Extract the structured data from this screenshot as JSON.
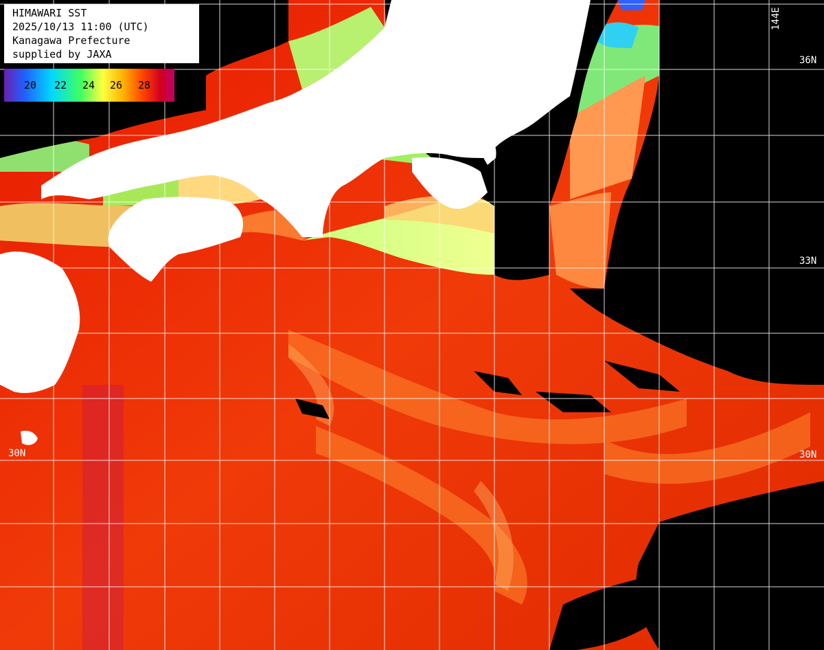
{
  "header": {
    "line1": "HIMAWARI SST",
    "line2": "2025/10/13 11:00 (UTC)",
    "line3": "Kanagawa Prefecture",
    "line4": "supplied by JAXA"
  },
  "legend": {
    "ticks": [
      "20",
      "22",
      "24",
      "26",
      "28"
    ],
    "colors": [
      "#6a1fb0",
      "#2060ff",
      "#00d8ff",
      "#40ff60",
      "#ffff40",
      "#ffb000",
      "#ff4000",
      "#d00020",
      "#c0006a"
    ]
  },
  "grid_labels": {
    "lat_36": "36N",
    "lat_33": "33N",
    "lat_30_left": "30N",
    "lat_30_right": "30N",
    "lon_144": "144E"
  },
  "colors": {
    "land": "#ffffff",
    "cloud": "#000000",
    "warm_sea": "#e02000",
    "grid": "#ffffff"
  }
}
